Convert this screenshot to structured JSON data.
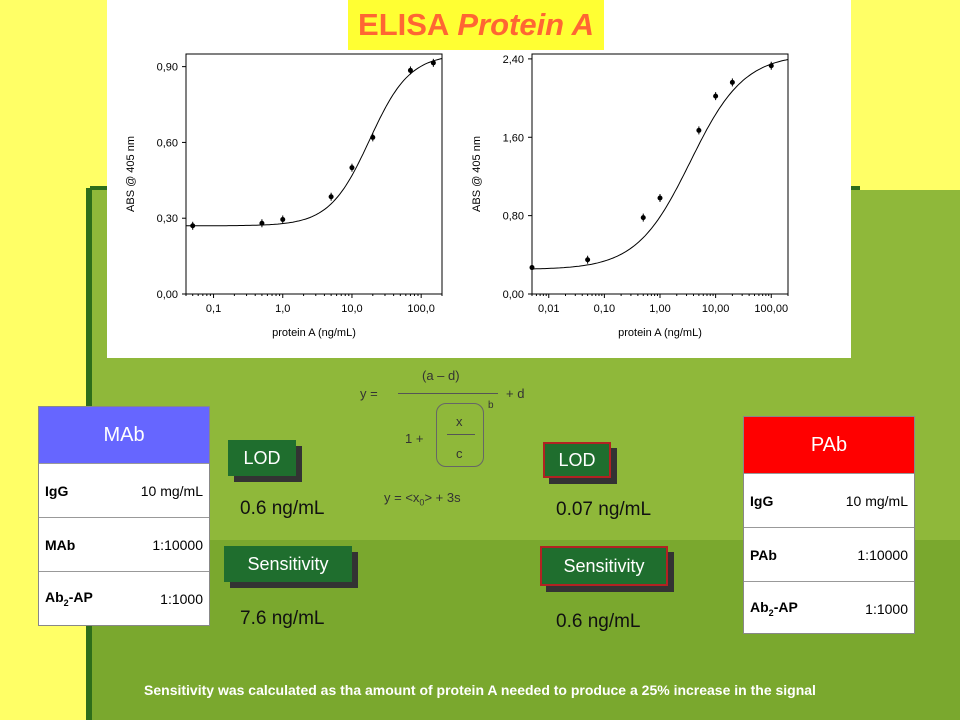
{
  "title": {
    "bold": "ELISA",
    "italic": "Protein A"
  },
  "chart_data": [
    {
      "type": "scatter",
      "xlabel": "protein A (ng/mL)",
      "ylabel": "ABS @ 405 nm",
      "xscale": "log",
      "x_ticks": [
        "0,1",
        "1,0",
        "10,0",
        "100,0"
      ],
      "y_ticks": [
        "0,00",
        "0,30",
        "0,60",
        "0,90"
      ],
      "xlim": [
        0.04,
        200
      ],
      "ylim": [
        0,
        0.95
      ],
      "points": [
        {
          "x": 0.05,
          "y": 0.27
        },
        {
          "x": 0.5,
          "y": 0.28
        },
        {
          "x": 1.0,
          "y": 0.295
        },
        {
          "x": 5.0,
          "y": 0.385
        },
        {
          "x": 10.0,
          "y": 0.5
        },
        {
          "x": 20.0,
          "y": 0.62
        },
        {
          "x": 70.0,
          "y": 0.885
        },
        {
          "x": 150.0,
          "y": 0.915
        }
      ],
      "fit": {
        "a": 0.27,
        "d": 0.95,
        "c": 18,
        "b": 1.5
      }
    },
    {
      "type": "scatter",
      "xlabel": "protein A (ng/mL)",
      "ylabel": "ABS @ 405 nm",
      "xscale": "log",
      "x_ticks": [
        "0,01",
        "0,10",
        "1,00",
        "10,00",
        "100,00"
      ],
      "y_ticks": [
        "0,00",
        "0,80",
        "1,60",
        "2,40"
      ],
      "xlim": [
        0.005,
        200
      ],
      "ylim": [
        0,
        2.45
      ],
      "points": [
        {
          "x": 0.005,
          "y": 0.27
        },
        {
          "x": 0.05,
          "y": 0.35
        },
        {
          "x": 0.5,
          "y": 0.78
        },
        {
          "x": 1.0,
          "y": 0.98
        },
        {
          "x": 5.0,
          "y": 1.67
        },
        {
          "x": 10.0,
          "y": 2.02
        },
        {
          "x": 20.0,
          "y": 2.16
        },
        {
          "x": 100.0,
          "y": 2.33
        }
      ],
      "fit": {
        "a": 0.25,
        "d": 2.45,
        "c": 3.5,
        "b": 0.9
      }
    }
  ],
  "equation": {
    "y": "y =",
    "numerator": "(a – d)",
    "plus_d": "+  d",
    "one_plus": "1 +",
    "x": "x",
    "c": "c",
    "b": "b",
    "lod_formula": "y = <x0> + 3s"
  },
  "mab_table": {
    "header": "MAb",
    "rows": [
      {
        "k": "IgG",
        "v": "10 mg/mL"
      },
      {
        "k": "MAb",
        "v": "1:10000"
      },
      {
        "k": "Ab2-AP",
        "v": "1:1000"
      }
    ]
  },
  "pab_table": {
    "header": "PAb",
    "rows": [
      {
        "k": "IgG",
        "v": "10 mg/mL"
      },
      {
        "k": "PAb",
        "v": "1:10000"
      },
      {
        "k": "Ab2-AP",
        "v": "1:1000"
      }
    ]
  },
  "left": {
    "lod_label": "LOD",
    "lod_value": "0.6 ng/mL",
    "sens_label": "Sensitivity",
    "sens_value": "7.6 ng/mL"
  },
  "right": {
    "lod_label": "LOD",
    "lod_value": "0.07 ng/mL",
    "sens_label": "Sensitivity",
    "sens_value": "0.6 ng/mL"
  },
  "footnote": "Sensitivity was calculated as tha amount of  protein A needed to produce a 25% increase in the signal"
}
